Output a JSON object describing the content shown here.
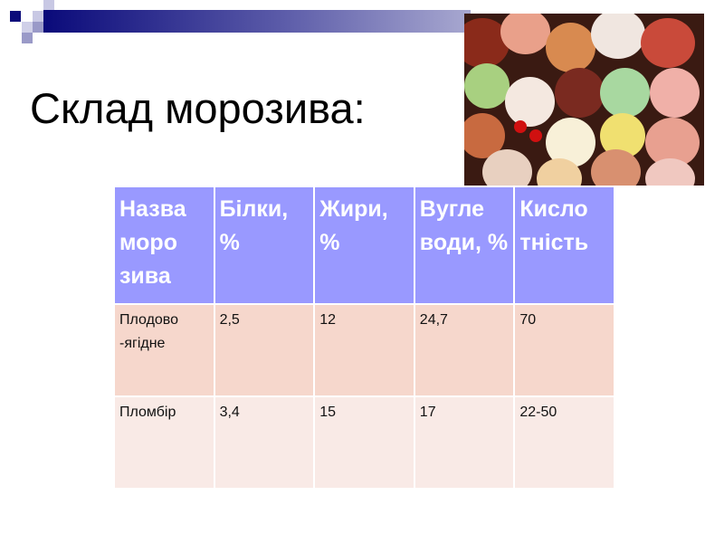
{
  "slide": {
    "title": "Склад морозива:"
  },
  "table": {
    "headers": [
      "Назва моро зива",
      "Білки, %",
      "Жири, %",
      "Вугле води, %",
      "Кисло тність"
    ],
    "rows": [
      [
        "Плодово -ягідне",
        "2,5",
        "12",
        "24,7",
        "70"
      ],
      [
        "Пломбір",
        "3,4",
        "15",
        "17",
        "22-50"
      ]
    ]
  },
  "colors": {
    "header": "#9999ff",
    "row_odd": "#f6d7cc",
    "row_even": "#f9eae6",
    "accent_bar": "#0a0a7a"
  }
}
